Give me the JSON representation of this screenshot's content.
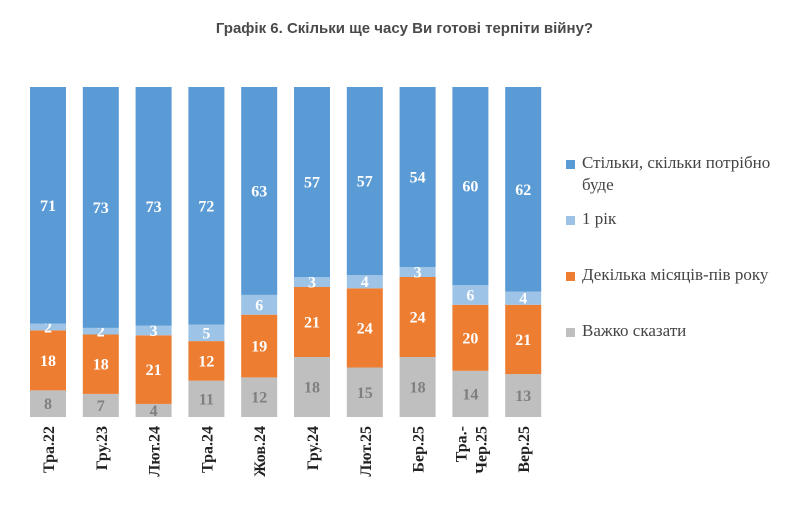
{
  "title": "Графік 6. Скільки ще часу Ви готові терпіти війну?",
  "legend": [
    {
      "label": "Стільки, скільки потрібно буде",
      "color": "#5b9bd5"
    },
    {
      "label": "1 рік",
      "color": "#9dc3e6"
    },
    {
      "label": "Декілька місяців-пів року",
      "color": "#ed7d31"
    },
    {
      "label": "Важко сказати",
      "color": "#bfbfbf"
    }
  ],
  "chart_data": {
    "type": "bar",
    "stacked": true,
    "title": "Графік 6. Скільки ще часу Ви готові терпіти війну?",
    "categories": [
      [
        "Тра.22"
      ],
      [
        "Гру.23"
      ],
      [
        "Лют.24"
      ],
      [
        "Тра.24"
      ],
      [
        "Жов.24"
      ],
      [
        "Гру.24"
      ],
      [
        "Лют.25"
      ],
      [
        "Бер.25"
      ],
      [
        "Тра.-",
        "Чер.25"
      ],
      [
        "Вер.25"
      ]
    ],
    "series": [
      {
        "name": "Важко сказати",
        "color": "#bfbfbf",
        "label_color": "#7f7f7f",
        "values": [
          8,
          7,
          4,
          11,
          12,
          18,
          15,
          18,
          14,
          13
        ]
      },
      {
        "name": "Декілька місяців-пів року",
        "color": "#ed7d31",
        "label_color": "#ffffff",
        "values": [
          18,
          18,
          21,
          12,
          19,
          21,
          24,
          24,
          20,
          21
        ]
      },
      {
        "name": "1 рік",
        "color": "#9dc3e6",
        "label_color": "#ffffff",
        "values": [
          2,
          2,
          3,
          5,
          6,
          3,
          4,
          3,
          6,
          4
        ]
      },
      {
        "name": "Стільки, скільки потрібно буде",
        "color": "#5b9bd5",
        "label_color": "#ffffff",
        "values": [
          71,
          73,
          73,
          72,
          63,
          57,
          57,
          54,
          60,
          62
        ]
      }
    ],
    "legend_position": "right",
    "grid": false
  }
}
